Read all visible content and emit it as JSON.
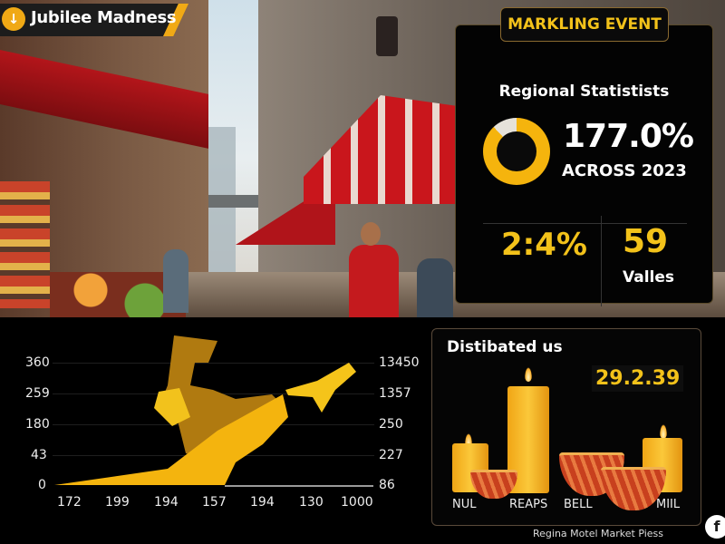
{
  "header": {
    "title": "Jubilee Madness",
    "icon": "diya-icon",
    "accent": "#f0a915"
  },
  "stats_card": {
    "badge": "MARKLING EVENT",
    "heading": "Regional Statistists",
    "main_value": "177.0%",
    "main_caption": "ACROSS 2023",
    "donut_fill_percent": 88,
    "donut_icon": "helmet-icon",
    "left_value": "2:4%",
    "right_value": "59",
    "right_caption": "Valles",
    "accent": "#f3c21a"
  },
  "chart_data": {
    "type": "area",
    "left_axis_ticks": [
      "360",
      "259",
      "180",
      "43",
      "0"
    ],
    "right_axis_ticks": [
      "13450",
      "1357",
      "250",
      "227",
      "86"
    ],
    "x_tick_labels": [
      "172",
      "199",
      "194",
      "157",
      "194",
      "130",
      "1000"
    ],
    "grid": true,
    "fill_color": "#f5b40d"
  },
  "distributed_card": {
    "title": "Distibated us",
    "value": "29.2.39",
    "items": [
      {
        "label": "NUL"
      },
      {
        "label": "REAPS"
      },
      {
        "label": "BELL"
      },
      {
        "label": "MIIL"
      }
    ]
  },
  "footer": {
    "text": "Regina Motel Market Piess",
    "social_icon": "facebook-icon"
  }
}
